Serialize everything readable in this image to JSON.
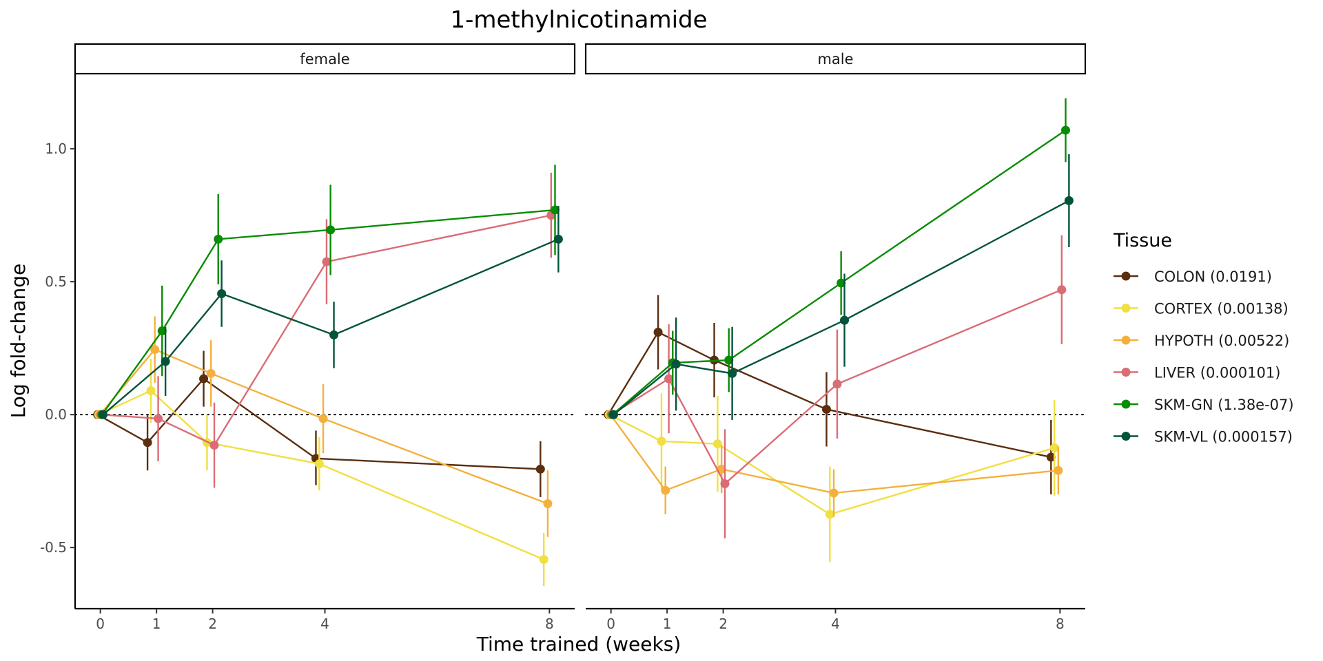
{
  "chart_data": {
    "type": "line",
    "title": "1-methylnicotinamide",
    "xlabel": "Time trained (weeks)",
    "ylabel": "Log fold-change",
    "x_ticks": [
      0,
      1,
      2,
      4,
      8
    ],
    "y_ticks": [
      -0.5,
      0.0,
      0.5,
      1.0
    ],
    "y_tick_labels": [
      "-0.5",
      "0.0",
      "0.5",
      "1.0"
    ],
    "xlim": [
      -0.45,
      8.45
    ],
    "ylim": [
      -0.73,
      1.28
    ],
    "reference_line_y": 0,
    "legend_title": "Tissue",
    "legend_position": "right",
    "series": [
      {
        "name": "COLON (0.0191)",
        "color": "#5A2E0F"
      },
      {
        "name": "CORTEX (0.00138)",
        "color": "#F0E040"
      },
      {
        "name": "HYPOTH (0.00522)",
        "color": "#F4B03E"
      },
      {
        "name": "LIVER (0.000101)",
        "color": "#DA6C75"
      },
      {
        "name": "SKM-GN (1.38e-07)",
        "color": "#088C03"
      },
      {
        "name": "SKM-VL (0.000157)",
        "color": "#03543B"
      }
    ],
    "panels": [
      {
        "label": "female",
        "series": [
          {
            "x": [
              0,
              1,
              2,
              4,
              8
            ],
            "y": [
              0,
              -0.105,
              0.135,
              -0.165,
              -0.205
            ],
            "lo": [
              0,
              -0.21,
              0.03,
              -0.265,
              -0.31
            ],
            "hi": [
              0,
              0,
              0.24,
              -0.06,
              -0.1
            ]
          },
          {
            "x": [
              0,
              1,
              2,
              4,
              8
            ],
            "y": [
              0,
              0.09,
              -0.105,
              -0.185,
              -0.545
            ],
            "lo": [
              0,
              -0.03,
              -0.21,
              -0.285,
              -0.645
            ],
            "hi": [
              0,
              0.21,
              0,
              -0.085,
              -0.445
            ]
          },
          {
            "x": [
              0,
              1,
              2,
              4,
              8
            ],
            "y": [
              0,
              0.245,
              0.155,
              -0.015,
              -0.335
            ],
            "lo": [
              0,
              0.12,
              0.03,
              -0.145,
              -0.46
            ],
            "hi": [
              0,
              0.37,
              0.28,
              0.115,
              -0.21
            ]
          },
          {
            "x": [
              0,
              1,
              2,
              4,
              8
            ],
            "y": [
              0,
              -0.015,
              -0.115,
              0.575,
              0.75
            ],
            "lo": [
              0,
              -0.175,
              -0.275,
              0.415,
              0.59
            ],
            "hi": [
              0,
              0.145,
              0.045,
              0.735,
              0.91
            ]
          },
          {
            "x": [
              0,
              1,
              2,
              4,
              8
            ],
            "y": [
              0,
              0.315,
              0.66,
              0.695,
              0.77
            ],
            "lo": [
              0,
              0.145,
              0.49,
              0.525,
              0.6
            ],
            "hi": [
              0,
              0.485,
              0.83,
              0.865,
              0.94
            ]
          },
          {
            "x": [
              0,
              1,
              2,
              4,
              8
            ],
            "y": [
              0,
              0.2,
              0.455,
              0.3,
              0.66
            ],
            "lo": [
              0,
              0.07,
              0.33,
              0.175,
              0.535
            ],
            "hi": [
              0,
              0.33,
              0.58,
              0.425,
              0.785
            ]
          }
        ]
      },
      {
        "label": "male",
        "series": [
          {
            "x": [
              0,
              1,
              2,
              4,
              8
            ],
            "y": [
              0,
              0.31,
              0.205,
              0.02,
              -0.16
            ],
            "lo": [
              0,
              0.17,
              0.065,
              -0.12,
              -0.3
            ],
            "hi": [
              0,
              0.45,
              0.345,
              0.16,
              -0.02
            ]
          },
          {
            "x": [
              0,
              1,
              2,
              4,
              8
            ],
            "y": [
              0,
              -0.1,
              -0.11,
              -0.375,
              -0.125
            ],
            "lo": [
              0,
              -0.28,
              -0.29,
              -0.555,
              -0.305
            ],
            "hi": [
              0,
              0.08,
              0.07,
              -0.195,
              0.055
            ]
          },
          {
            "x": [
              0,
              1,
              2,
              4,
              8
            ],
            "y": [
              0,
              -0.285,
              -0.205,
              -0.295,
              -0.21
            ],
            "lo": [
              0,
              -0.375,
              -0.295,
              -0.385,
              -0.3
            ],
            "hi": [
              0,
              -0.195,
              -0.115,
              -0.205,
              -0.12
            ]
          },
          {
            "x": [
              0,
              1,
              2,
              4,
              8
            ],
            "y": [
              0,
              0.135,
              -0.26,
              0.115,
              0.47
            ],
            "lo": [
              0,
              -0.07,
              -0.465,
              -0.09,
              0.265
            ],
            "hi": [
              0,
              0.34,
              -0.055,
              0.32,
              0.675
            ]
          },
          {
            "x": [
              0,
              1,
              2,
              4,
              8
            ],
            "y": [
              0,
              0.195,
              0.205,
              0.495,
              1.07
            ],
            "lo": [
              0,
              0.075,
              0.085,
              0.375,
              0.95
            ],
            "hi": [
              0,
              0.315,
              0.325,
              0.615,
              1.19
            ]
          },
          {
            "x": [
              0,
              1,
              2,
              4,
              8
            ],
            "y": [
              0,
              0.19,
              0.155,
              0.355,
              0.805
            ],
            "lo": [
              0,
              0.015,
              -0.02,
              0.18,
              0.63
            ],
            "hi": [
              0,
              0.365,
              0.33,
              0.53,
              0.98
            ]
          }
        ]
      }
    ]
  }
}
